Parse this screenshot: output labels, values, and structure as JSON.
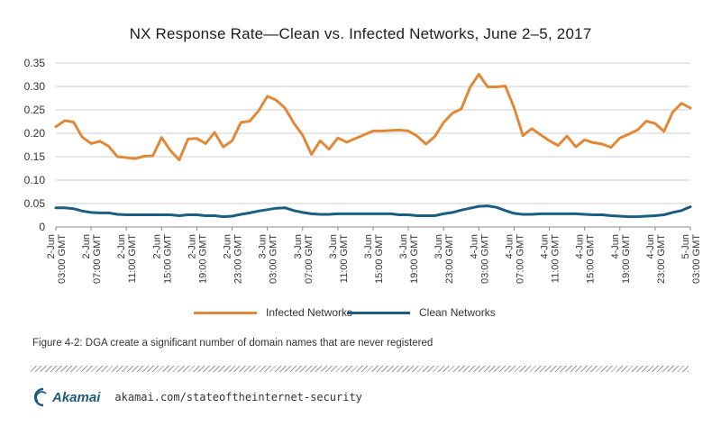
{
  "chart_data": {
    "type": "line",
    "title": "NX Response Rate—Clean vs. Infected Networks, June 2–5, 2017",
    "xlabel": "",
    "ylabel": "",
    "ylim": [
      0,
      0.35
    ],
    "y_ticks": [
      "0",
      "0.05",
      "0.10",
      "0.15",
      "0.20",
      "0.25",
      "0.30",
      "0.35"
    ],
    "grid": true,
    "legend_position": "bottom",
    "x_tick_labels": [
      {
        "day": "2-Jun",
        "time": "03:00 GMT"
      },
      {
        "day": "2-Jun",
        "time": "07:00 GMT"
      },
      {
        "day": "2-Jun",
        "time": "11:00 GMT"
      },
      {
        "day": "2-Jun",
        "time": "15:00 GMT"
      },
      {
        "day": "2-Jun",
        "time": "19:00 GMT"
      },
      {
        "day": "2-Jun",
        "time": "23:00 GMT"
      },
      {
        "day": "3-Jun",
        "time": "03:00 GMT"
      },
      {
        "day": "3-Jun",
        "time": "07:00 GMT"
      },
      {
        "day": "3-Jun",
        "time": "11:00 GMT"
      },
      {
        "day": "3-Jun",
        "time": "15:00 GMT"
      },
      {
        "day": "3-Jun",
        "time": "19:00 GMT"
      },
      {
        "day": "3-Jun",
        "time": "23:00 GMT"
      },
      {
        "day": "4-Jun",
        "time": "03:00 GMT"
      },
      {
        "day": "4-Jun",
        "time": "07:00 GMT"
      },
      {
        "day": "4-Jun",
        "time": "11:00 GMT"
      },
      {
        "day": "4-Jun",
        "time": "15:00 GMT"
      },
      {
        "day": "4-Jun",
        "time": "19:00 GMT"
      },
      {
        "day": "4-Jun",
        "time": "23:00 GMT"
      },
      {
        "day": "5-Jun",
        "time": "03:00 GMT"
      }
    ],
    "x_range_hours": [
      0,
      72
    ],
    "series": [
      {
        "name": "Infected Networks",
        "color": "#e0893a",
        "points": [
          [
            0,
            0.214
          ],
          [
            1,
            0.227
          ],
          [
            2,
            0.224
          ],
          [
            3,
            0.192
          ],
          [
            4,
            0.178
          ],
          [
            5,
            0.183
          ],
          [
            6,
            0.172
          ],
          [
            7,
            0.15
          ],
          [
            8,
            0.148
          ],
          [
            9,
            0.146
          ],
          [
            10,
            0.151
          ],
          [
            11,
            0.152
          ],
          [
            12,
            0.191
          ],
          [
            13,
            0.163
          ],
          [
            14,
            0.143
          ],
          [
            15,
            0.188
          ],
          [
            16,
            0.189
          ],
          [
            17,
            0.178
          ],
          [
            18,
            0.202
          ],
          [
            19,
            0.171
          ],
          [
            20,
            0.184
          ],
          [
            21,
            0.223
          ],
          [
            22,
            0.226
          ],
          [
            23,
            0.248
          ],
          [
            24,
            0.279
          ],
          [
            25,
            0.271
          ],
          [
            26,
            0.254
          ],
          [
            27,
            0.222
          ],
          [
            28,
            0.196
          ],
          [
            29,
            0.155
          ],
          [
            30,
            0.184
          ],
          [
            31,
            0.166
          ],
          [
            32,
            0.19
          ],
          [
            33,
            0.181
          ],
          [
            34,
            0.189
          ],
          [
            35,
            0.197
          ],
          [
            36,
            0.205
          ],
          [
            37,
            0.205
          ],
          [
            38,
            0.206
          ],
          [
            39,
            0.207
          ],
          [
            40,
            0.205
          ],
          [
            41,
            0.194
          ],
          [
            42,
            0.177
          ],
          [
            43,
            0.193
          ],
          [
            44,
            0.223
          ],
          [
            45,
            0.243
          ],
          [
            46,
            0.252
          ],
          [
            47,
            0.298
          ],
          [
            48,
            0.326
          ],
          [
            49,
            0.299
          ],
          [
            50,
            0.299
          ],
          [
            51,
            0.301
          ],
          [
            52,
            0.255
          ],
          [
            53,
            0.195
          ],
          [
            54,
            0.21
          ],
          [
            55,
            0.197
          ],
          [
            56,
            0.184
          ],
          [
            57,
            0.174
          ],
          [
            58,
            0.194
          ],
          [
            59,
            0.171
          ],
          [
            60,
            0.186
          ],
          [
            61,
            0.18
          ],
          [
            62,
            0.177
          ],
          [
            63,
            0.17
          ],
          [
            64,
            0.19
          ],
          [
            65,
            0.198
          ],
          [
            66,
            0.207
          ],
          [
            67,
            0.226
          ],
          [
            68,
            0.221
          ],
          [
            69,
            0.204
          ],
          [
            70,
            0.245
          ],
          [
            71,
            0.264
          ],
          [
            72,
            0.254
          ]
        ]
      },
      {
        "name": "Clean Networks",
        "color": "#1a5e82",
        "points": [
          [
            0,
            0.041
          ],
          [
            1,
            0.041
          ],
          [
            2,
            0.039
          ],
          [
            3,
            0.034
          ],
          [
            4,
            0.031
          ],
          [
            5,
            0.03
          ],
          [
            6,
            0.03
          ],
          [
            7,
            0.027
          ],
          [
            8,
            0.026
          ],
          [
            9,
            0.026
          ],
          [
            10,
            0.026
          ],
          [
            11,
            0.026
          ],
          [
            12,
            0.026
          ],
          [
            13,
            0.026
          ],
          [
            14,
            0.024
          ],
          [
            15,
            0.026
          ],
          [
            16,
            0.026
          ],
          [
            17,
            0.024
          ],
          [
            18,
            0.024
          ],
          [
            19,
            0.022
          ],
          [
            20,
            0.023
          ],
          [
            21,
            0.027
          ],
          [
            22,
            0.03
          ],
          [
            23,
            0.034
          ],
          [
            24,
            0.037
          ],
          [
            25,
            0.04
          ],
          [
            26,
            0.041
          ],
          [
            27,
            0.035
          ],
          [
            28,
            0.031
          ],
          [
            29,
            0.028
          ],
          [
            30,
            0.027
          ],
          [
            31,
            0.027
          ],
          [
            32,
            0.028
          ],
          [
            33,
            0.028
          ],
          [
            34,
            0.028
          ],
          [
            35,
            0.028
          ],
          [
            36,
            0.028
          ],
          [
            37,
            0.028
          ],
          [
            38,
            0.028
          ],
          [
            39,
            0.026
          ],
          [
            40,
            0.026
          ],
          [
            41,
            0.024
          ],
          [
            42,
            0.024
          ],
          [
            43,
            0.024
          ],
          [
            44,
            0.028
          ],
          [
            45,
            0.031
          ],
          [
            46,
            0.036
          ],
          [
            47,
            0.04
          ],
          [
            48,
            0.044
          ],
          [
            49,
            0.045
          ],
          [
            50,
            0.042
          ],
          [
            51,
            0.035
          ],
          [
            52,
            0.029
          ],
          [
            53,
            0.027
          ],
          [
            54,
            0.027
          ],
          [
            55,
            0.028
          ],
          [
            56,
            0.028
          ],
          [
            57,
            0.028
          ],
          [
            58,
            0.028
          ],
          [
            59,
            0.028
          ],
          [
            60,
            0.027
          ],
          [
            61,
            0.026
          ],
          [
            62,
            0.026
          ],
          [
            63,
            0.024
          ],
          [
            64,
            0.023
          ],
          [
            65,
            0.022
          ],
          [
            66,
            0.022
          ],
          [
            67,
            0.023
          ],
          [
            68,
            0.024
          ],
          [
            69,
            0.026
          ],
          [
            70,
            0.031
          ],
          [
            71,
            0.035
          ],
          [
            72,
            0.043
          ]
        ]
      }
    ]
  },
  "caption": "Figure 4-2: DGA create a significant number of domain names that are never registered",
  "footer": {
    "brand": "Akamai",
    "url": "akamai.com/stateoftheinternet-security"
  }
}
